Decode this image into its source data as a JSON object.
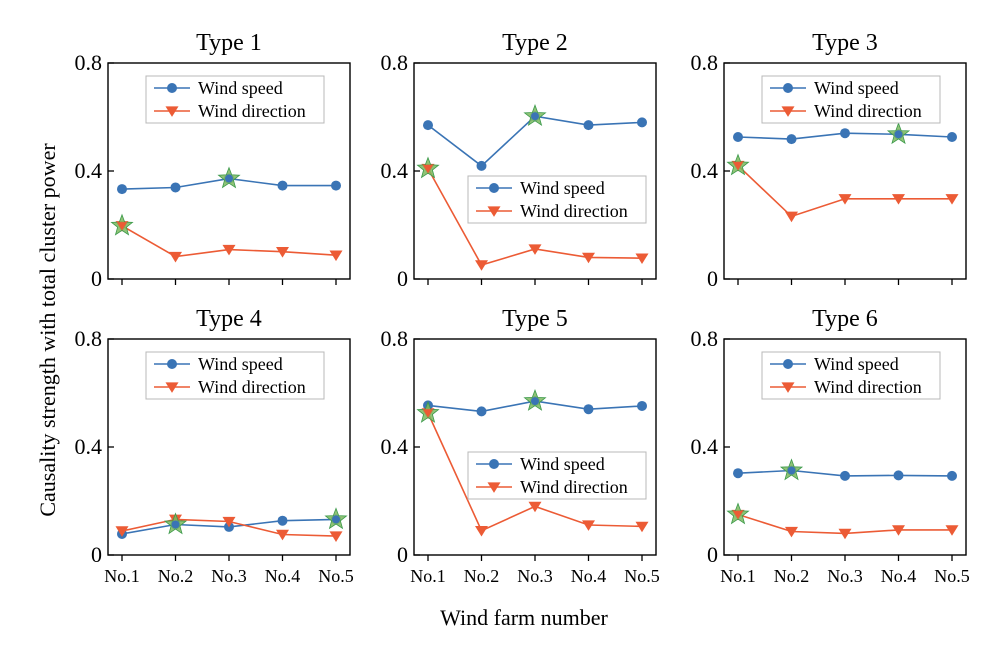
{
  "figure": {
    "ylabel": "Causality strength with total cluster power",
    "xlabel": "Wind farm number"
  },
  "colors": {
    "wind_speed": "#3A74B5",
    "wind_direction": "#EC5B35",
    "star_fill": "#7DB85E",
    "star_stroke": "#3C9A4B"
  },
  "chart_data": [
    {
      "type": "line",
      "title": "Type 1",
      "categories": [
        "No.1",
        "No.2",
        "No.3",
        "No.4",
        "No.5"
      ],
      "ylim": [
        0,
        0.8
      ],
      "yticks": [
        "0",
        "0.4",
        "0.8"
      ],
      "legend_position": "top-center",
      "series": [
        {
          "name": "Wind speed",
          "marker": "circle",
          "values": [
            0.333,
            0.339,
            0.372,
            0.346,
            0.346
          ]
        },
        {
          "name": "Wind direction",
          "marker": "triangle-down",
          "values": [
            0.197,
            0.083,
            0.109,
            0.101,
            0.088
          ]
        }
      ],
      "highlighted": [
        {
          "series": 1,
          "index": 0
        },
        {
          "series": 0,
          "index": 2
        }
      ]
    },
    {
      "type": "line",
      "title": "Type 2",
      "categories": [
        "No.1",
        "No.2",
        "No.3",
        "No.4",
        "No.5"
      ],
      "ylim": [
        0,
        0.8
      ],
      "yticks": [
        "0",
        "0.4",
        "0.8"
      ],
      "legend_position": "middle-right",
      "series": [
        {
          "name": "Wind speed",
          "marker": "circle",
          "values": [
            0.57,
            0.419,
            0.603,
            0.57,
            0.58
          ]
        },
        {
          "name": "Wind direction",
          "marker": "triangle-down",
          "values": [
            0.409,
            0.052,
            0.111,
            0.08,
            0.077
          ]
        }
      ],
      "highlighted": [
        {
          "series": 1,
          "index": 0
        },
        {
          "series": 0,
          "index": 2
        }
      ]
    },
    {
      "type": "line",
      "title": "Type 3",
      "categories": [
        "No.1",
        "No.2",
        "No.3",
        "No.4",
        "No.5"
      ],
      "ylim": [
        0,
        0.8
      ],
      "yticks": [
        "0",
        "0.4",
        "0.8"
      ],
      "legend_position": "top-center",
      "series": [
        {
          "name": "Wind speed",
          "marker": "circle",
          "values": [
            0.526,
            0.518,
            0.54,
            0.536,
            0.526
          ]
        },
        {
          "name": "Wind direction",
          "marker": "triangle-down",
          "values": [
            0.42,
            0.232,
            0.297,
            0.297,
            0.297
          ]
        }
      ],
      "highlighted": [
        {
          "series": 1,
          "index": 0
        },
        {
          "series": 0,
          "index": 3
        }
      ]
    },
    {
      "type": "line",
      "title": "Type 4",
      "categories": [
        "No.1",
        "No.2",
        "No.3",
        "No.4",
        "No.5"
      ],
      "ylim": [
        0,
        0.8
      ],
      "yticks": [
        "0",
        "0.4",
        "0.8"
      ],
      "legend_position": "top-center",
      "series": [
        {
          "name": "Wind speed",
          "marker": "circle",
          "values": [
            0.078,
            0.113,
            0.104,
            0.127,
            0.132
          ]
        },
        {
          "name": "Wind direction",
          "marker": "triangle-down",
          "values": [
            0.089,
            0.132,
            0.124,
            0.076,
            0.07
          ]
        }
      ],
      "highlighted": [
        {
          "series": 0,
          "index": 1
        },
        {
          "series": 0,
          "index": 4
        }
      ]
    },
    {
      "type": "line",
      "title": "Type 5",
      "categories": [
        "No.1",
        "No.2",
        "No.3",
        "No.4",
        "No.5"
      ],
      "ylim": [
        0,
        0.8
      ],
      "yticks": [
        "0",
        "0.4",
        "0.8"
      ],
      "legend_position": "middle-right",
      "series": [
        {
          "name": "Wind speed",
          "marker": "circle",
          "values": [
            0.554,
            0.532,
            0.57,
            0.54,
            0.552
          ]
        },
        {
          "name": "Wind direction",
          "marker": "triangle-down",
          "values": [
            0.526,
            0.09,
            0.18,
            0.111,
            0.106
          ]
        }
      ],
      "highlighted": [
        {
          "series": 1,
          "index": 0
        },
        {
          "series": 0,
          "index": 2
        }
      ]
    },
    {
      "type": "line",
      "title": "Type 6",
      "categories": [
        "No.1",
        "No.2",
        "No.3",
        "No.4",
        "No.5"
      ],
      "ylim": [
        0,
        0.8
      ],
      "yticks": [
        "0",
        "0.4",
        "0.8"
      ],
      "legend_position": "top-center",
      "series": [
        {
          "name": "Wind speed",
          "marker": "circle",
          "values": [
            0.303,
            0.313,
            0.293,
            0.295,
            0.293
          ]
        },
        {
          "name": "Wind direction",
          "marker": "triangle-down",
          "values": [
            0.15,
            0.087,
            0.08,
            0.093,
            0.093
          ]
        }
      ],
      "highlighted": [
        {
          "series": 1,
          "index": 0
        },
        {
          "series": 0,
          "index": 1
        }
      ]
    }
  ]
}
